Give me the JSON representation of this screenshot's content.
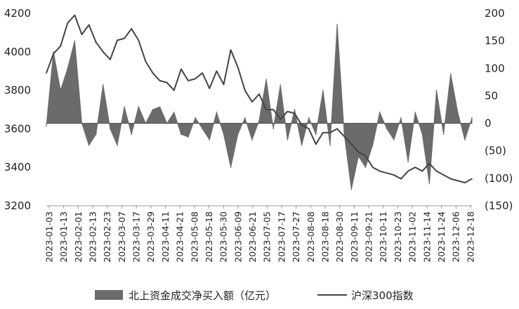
{
  "chart_data": {
    "type": "bar+line",
    "title": "",
    "x_label": "",
    "grid": false,
    "legend_position": "bottom",
    "left_axis": {
      "ticks": [
        3200,
        3400,
        3600,
        3800,
        4000,
        4200
      ],
      "ylim": [
        3200,
        4200
      ]
    },
    "right_axis": {
      "ticks": [
        200,
        150,
        100,
        50,
        0,
        -50,
        -100,
        -150
      ],
      "tick_labels": [
        "200",
        "150",
        "100",
        "50",
        "0",
        "(50)",
        "(100)",
        "(150)"
      ],
      "ylim": [
        -150,
        200
      ]
    },
    "x_tick_labels": [
      "2023-01-03",
      "2023-01-13",
      "2023-02-01",
      "2023-02-13",
      "2023-02-23",
      "2023-03-07",
      "2023-03-17",
      "2023-03-29",
      "2023-04-11",
      "2023-04-21",
      "2023-05-08",
      "2023-05-18",
      "2023-05-30",
      "2023-06-09",
      "2023-06-21",
      "2023-07-05",
      "2023-07-17",
      "2023-07-27",
      "2023-08-08",
      "2023-08-18",
      "2023-08-30",
      "2023-09-11",
      "2023-09-21",
      "2023-10-11",
      "2023-10-23",
      "2023-11-02",
      "2023-11-14",
      "2023-11-24",
      "2023-12-06",
      "2023-12-18"
    ],
    "series": [
      {
        "name": "北上资金成交净买入额（亿元）",
        "type": "area",
        "axis": "right",
        "color": "#6b6b6b",
        "x": [
          0,
          4,
          8,
          12,
          16,
          20,
          24,
          28,
          32,
          36,
          40,
          44,
          48,
          52,
          56,
          60,
          64,
          68,
          72,
          76,
          80,
          84,
          88,
          92,
          96,
          100,
          104,
          108,
          112,
          116,
          120,
          124,
          128,
          132,
          136,
          140,
          144,
          148,
          152,
          156,
          160,
          164,
          168,
          172,
          176,
          180,
          184,
          188,
          192,
          196,
          200,
          204,
          208,
          212,
          216,
          220,
          224,
          228,
          232,
          236,
          240
        ],
        "values": [
          -5,
          130,
          60,
          100,
          150,
          0,
          -40,
          -20,
          70,
          -10,
          -40,
          30,
          -20,
          30,
          0,
          25,
          30,
          0,
          20,
          -20,
          -25,
          10,
          -10,
          -30,
          20,
          -20,
          -80,
          -20,
          10,
          -30,
          5,
          80,
          -10,
          70,
          -30,
          25,
          -40,
          10,
          -20,
          60,
          -40,
          180,
          -20,
          -120,
          -60,
          -80,
          -40,
          20,
          -10,
          -30,
          10,
          -70,
          20,
          -20,
          -110,
          60,
          -20,
          90,
          20,
          -30,
          10
        ]
      },
      {
        "name": "沪深300指数",
        "type": "line",
        "axis": "left",
        "color": "#444444",
        "x": [
          0,
          4,
          8,
          12,
          16,
          20,
          24,
          28,
          32,
          36,
          40,
          44,
          48,
          52,
          56,
          60,
          64,
          68,
          72,
          76,
          80,
          84,
          88,
          92,
          96,
          100,
          104,
          108,
          112,
          116,
          120,
          124,
          128,
          132,
          136,
          140,
          144,
          148,
          152,
          156,
          160,
          164,
          168,
          172,
          176,
          180,
          184,
          188,
          192,
          196,
          200,
          204,
          208,
          212,
          216,
          220,
          224,
          228,
          232,
          236,
          240
        ],
        "values": [
          3890,
          3990,
          4030,
          4150,
          4190,
          4090,
          4140,
          4050,
          4000,
          3960,
          4060,
          4070,
          4120,
          4060,
          3950,
          3890,
          3850,
          3840,
          3800,
          3910,
          3850,
          3860,
          3890,
          3810,
          3900,
          3830,
          4010,
          3920,
          3800,
          3740,
          3780,
          3700,
          3700,
          3650,
          3690,
          3680,
          3620,
          3600,
          3520,
          3580,
          3580,
          3600,
          3560,
          3520,
          3480,
          3460,
          3400,
          3380,
          3370,
          3360,
          3340,
          3380,
          3400,
          3380,
          3420,
          3380,
          3360,
          3340,
          3330,
          3320,
          3340
        ]
      }
    ]
  },
  "legend": {
    "bar_label": "北上资金成交净买入额（亿元）",
    "line_label": "沪深300指数"
  }
}
